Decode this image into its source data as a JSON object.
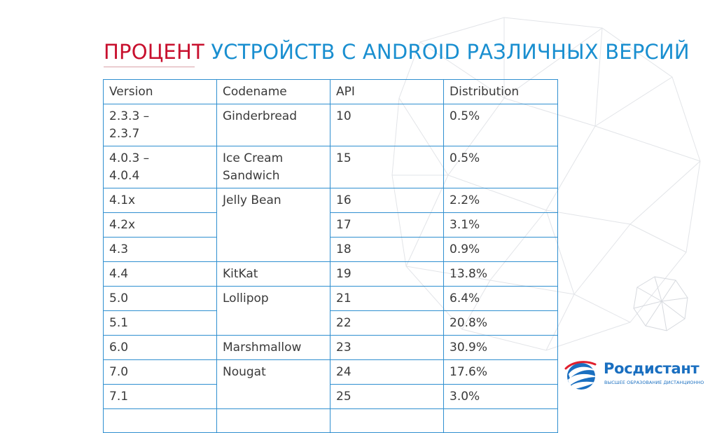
{
  "slide": {
    "title_red": "ПРОЦЕНТ",
    "title_blue": "УСТРОЙСТВ С ANDROID РАЗЛИЧНЫХ ВЕРСИЙ"
  },
  "table": {
    "headers": [
      "Version",
      "Codename",
      "API",
      "Distribution"
    ],
    "rows": [
      {
        "version": "2.3.3 – 2.3.7",
        "codename": "Ginderbread",
        "api": "10",
        "distribution": "0.5%"
      },
      {
        "version": "4.0.3 – 4.0.4",
        "codename": "Ice Cream Sandwich",
        "api": "15",
        "distribution": "0.5%"
      },
      {
        "version": "4.1x",
        "codename": "Jelly Bean",
        "api": "16",
        "distribution": "2.2%"
      },
      {
        "version": "4.2x",
        "codename": "",
        "api": "17",
        "distribution": "3.1%"
      },
      {
        "version": "4.3",
        "codename": "",
        "api": "18",
        "distribution": "0.9%"
      },
      {
        "version": "4.4",
        "codename": "KitKat",
        "api": "19",
        "distribution": "13.8%"
      },
      {
        "version": "5.0",
        "codename": "Lollipop",
        "api": "21",
        "distribution": "6.4%"
      },
      {
        "version": "5.1",
        "codename": "",
        "api": "22",
        "distribution": "20.8%"
      },
      {
        "version": "6.0",
        "codename": "Marshmallow",
        "api": "23",
        "distribution": "30.9%"
      },
      {
        "version": "7.0",
        "codename": "Nougat",
        "api": "24",
        "distribution": "17.6%"
      },
      {
        "version": "7.1",
        "codename": "",
        "api": "25",
        "distribution": "3.0%"
      }
    ]
  },
  "logo": {
    "name": "Росдистант",
    "tagline": "ВЫСШЕЕ ОБРАЗОВАНИЕ ДИСТАНЦИОННО"
  },
  "colors": {
    "title_red": "#c8102e",
    "title_blue": "#1a8fd0",
    "table_border": "#2f8fd0",
    "body_text": "#3a3a3a"
  }
}
